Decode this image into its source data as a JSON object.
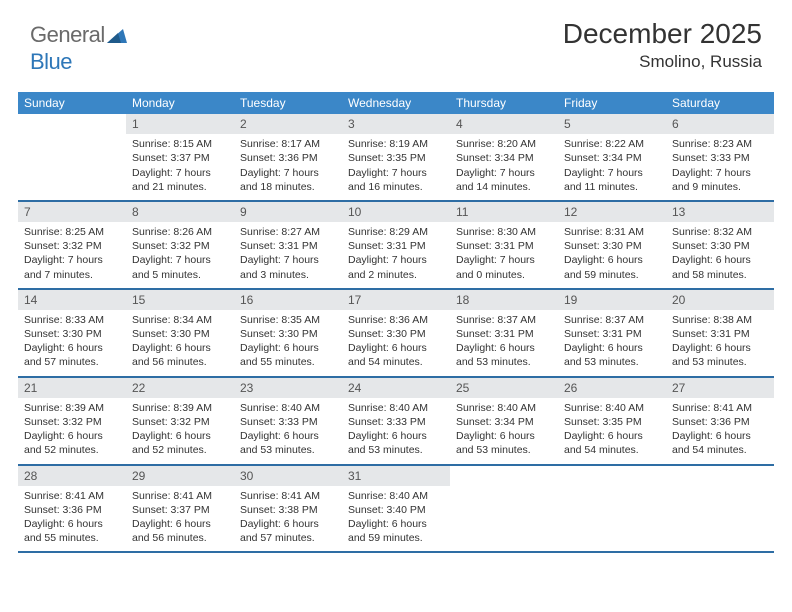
{
  "brand": {
    "part1": "General",
    "part2": "Blue"
  },
  "header": {
    "title": "December 2025",
    "location": "Smolino, Russia"
  },
  "colors": {
    "header_bg": "#3b87c8",
    "header_text": "#ffffff",
    "week_border": "#2e6da4",
    "daynum_bg": "#e5e7e9",
    "body_text": "#333333",
    "logo_gray": "#6a6a6a",
    "logo_blue": "#2e77b8",
    "page_bg": "#ffffff"
  },
  "typography": {
    "title_fontsize": 28,
    "subtitle_fontsize": 17,
    "dayhead_fontsize": 12,
    "cell_fontsize": 10.5
  },
  "daynames": [
    "Sunday",
    "Monday",
    "Tuesday",
    "Wednesday",
    "Thursday",
    "Friday",
    "Saturday"
  ],
  "weeks": [
    [
      {
        "n": "",
        "sr": "",
        "ss": "",
        "dl": ""
      },
      {
        "n": "1",
        "sr": "Sunrise: 8:15 AM",
        "ss": "Sunset: 3:37 PM",
        "dl": "Daylight: 7 hours and 21 minutes."
      },
      {
        "n": "2",
        "sr": "Sunrise: 8:17 AM",
        "ss": "Sunset: 3:36 PM",
        "dl": "Daylight: 7 hours and 18 minutes."
      },
      {
        "n": "3",
        "sr": "Sunrise: 8:19 AM",
        "ss": "Sunset: 3:35 PM",
        "dl": "Daylight: 7 hours and 16 minutes."
      },
      {
        "n": "4",
        "sr": "Sunrise: 8:20 AM",
        "ss": "Sunset: 3:34 PM",
        "dl": "Daylight: 7 hours and 14 minutes."
      },
      {
        "n": "5",
        "sr": "Sunrise: 8:22 AM",
        "ss": "Sunset: 3:34 PM",
        "dl": "Daylight: 7 hours and 11 minutes."
      },
      {
        "n": "6",
        "sr": "Sunrise: 8:23 AM",
        "ss": "Sunset: 3:33 PM",
        "dl": "Daylight: 7 hours and 9 minutes."
      }
    ],
    [
      {
        "n": "7",
        "sr": "Sunrise: 8:25 AM",
        "ss": "Sunset: 3:32 PM",
        "dl": "Daylight: 7 hours and 7 minutes."
      },
      {
        "n": "8",
        "sr": "Sunrise: 8:26 AM",
        "ss": "Sunset: 3:32 PM",
        "dl": "Daylight: 7 hours and 5 minutes."
      },
      {
        "n": "9",
        "sr": "Sunrise: 8:27 AM",
        "ss": "Sunset: 3:31 PM",
        "dl": "Daylight: 7 hours and 3 minutes."
      },
      {
        "n": "10",
        "sr": "Sunrise: 8:29 AM",
        "ss": "Sunset: 3:31 PM",
        "dl": "Daylight: 7 hours and 2 minutes."
      },
      {
        "n": "11",
        "sr": "Sunrise: 8:30 AM",
        "ss": "Sunset: 3:31 PM",
        "dl": "Daylight: 7 hours and 0 minutes."
      },
      {
        "n": "12",
        "sr": "Sunrise: 8:31 AM",
        "ss": "Sunset: 3:30 PM",
        "dl": "Daylight: 6 hours and 59 minutes."
      },
      {
        "n": "13",
        "sr": "Sunrise: 8:32 AM",
        "ss": "Sunset: 3:30 PM",
        "dl": "Daylight: 6 hours and 58 minutes."
      }
    ],
    [
      {
        "n": "14",
        "sr": "Sunrise: 8:33 AM",
        "ss": "Sunset: 3:30 PM",
        "dl": "Daylight: 6 hours and 57 minutes."
      },
      {
        "n": "15",
        "sr": "Sunrise: 8:34 AM",
        "ss": "Sunset: 3:30 PM",
        "dl": "Daylight: 6 hours and 56 minutes."
      },
      {
        "n": "16",
        "sr": "Sunrise: 8:35 AM",
        "ss": "Sunset: 3:30 PM",
        "dl": "Daylight: 6 hours and 55 minutes."
      },
      {
        "n": "17",
        "sr": "Sunrise: 8:36 AM",
        "ss": "Sunset: 3:30 PM",
        "dl": "Daylight: 6 hours and 54 minutes."
      },
      {
        "n": "18",
        "sr": "Sunrise: 8:37 AM",
        "ss": "Sunset: 3:31 PM",
        "dl": "Daylight: 6 hours and 53 minutes."
      },
      {
        "n": "19",
        "sr": "Sunrise: 8:37 AM",
        "ss": "Sunset: 3:31 PM",
        "dl": "Daylight: 6 hours and 53 minutes."
      },
      {
        "n": "20",
        "sr": "Sunrise: 8:38 AM",
        "ss": "Sunset: 3:31 PM",
        "dl": "Daylight: 6 hours and 53 minutes."
      }
    ],
    [
      {
        "n": "21",
        "sr": "Sunrise: 8:39 AM",
        "ss": "Sunset: 3:32 PM",
        "dl": "Daylight: 6 hours and 52 minutes."
      },
      {
        "n": "22",
        "sr": "Sunrise: 8:39 AM",
        "ss": "Sunset: 3:32 PM",
        "dl": "Daylight: 6 hours and 52 minutes."
      },
      {
        "n": "23",
        "sr": "Sunrise: 8:40 AM",
        "ss": "Sunset: 3:33 PM",
        "dl": "Daylight: 6 hours and 53 minutes."
      },
      {
        "n": "24",
        "sr": "Sunrise: 8:40 AM",
        "ss": "Sunset: 3:33 PM",
        "dl": "Daylight: 6 hours and 53 minutes."
      },
      {
        "n": "25",
        "sr": "Sunrise: 8:40 AM",
        "ss": "Sunset: 3:34 PM",
        "dl": "Daylight: 6 hours and 53 minutes."
      },
      {
        "n": "26",
        "sr": "Sunrise: 8:40 AM",
        "ss": "Sunset: 3:35 PM",
        "dl": "Daylight: 6 hours and 54 minutes."
      },
      {
        "n": "27",
        "sr": "Sunrise: 8:41 AM",
        "ss": "Sunset: 3:36 PM",
        "dl": "Daylight: 6 hours and 54 minutes."
      }
    ],
    [
      {
        "n": "28",
        "sr": "Sunrise: 8:41 AM",
        "ss": "Sunset: 3:36 PM",
        "dl": "Daylight: 6 hours and 55 minutes."
      },
      {
        "n": "29",
        "sr": "Sunrise: 8:41 AM",
        "ss": "Sunset: 3:37 PM",
        "dl": "Daylight: 6 hours and 56 minutes."
      },
      {
        "n": "30",
        "sr": "Sunrise: 8:41 AM",
        "ss": "Sunset: 3:38 PM",
        "dl": "Daylight: 6 hours and 57 minutes."
      },
      {
        "n": "31",
        "sr": "Sunrise: 8:40 AM",
        "ss": "Sunset: 3:40 PM",
        "dl": "Daylight: 6 hours and 59 minutes."
      },
      {
        "n": "",
        "sr": "",
        "ss": "",
        "dl": ""
      },
      {
        "n": "",
        "sr": "",
        "ss": "",
        "dl": ""
      },
      {
        "n": "",
        "sr": "",
        "ss": "",
        "dl": ""
      }
    ]
  ]
}
